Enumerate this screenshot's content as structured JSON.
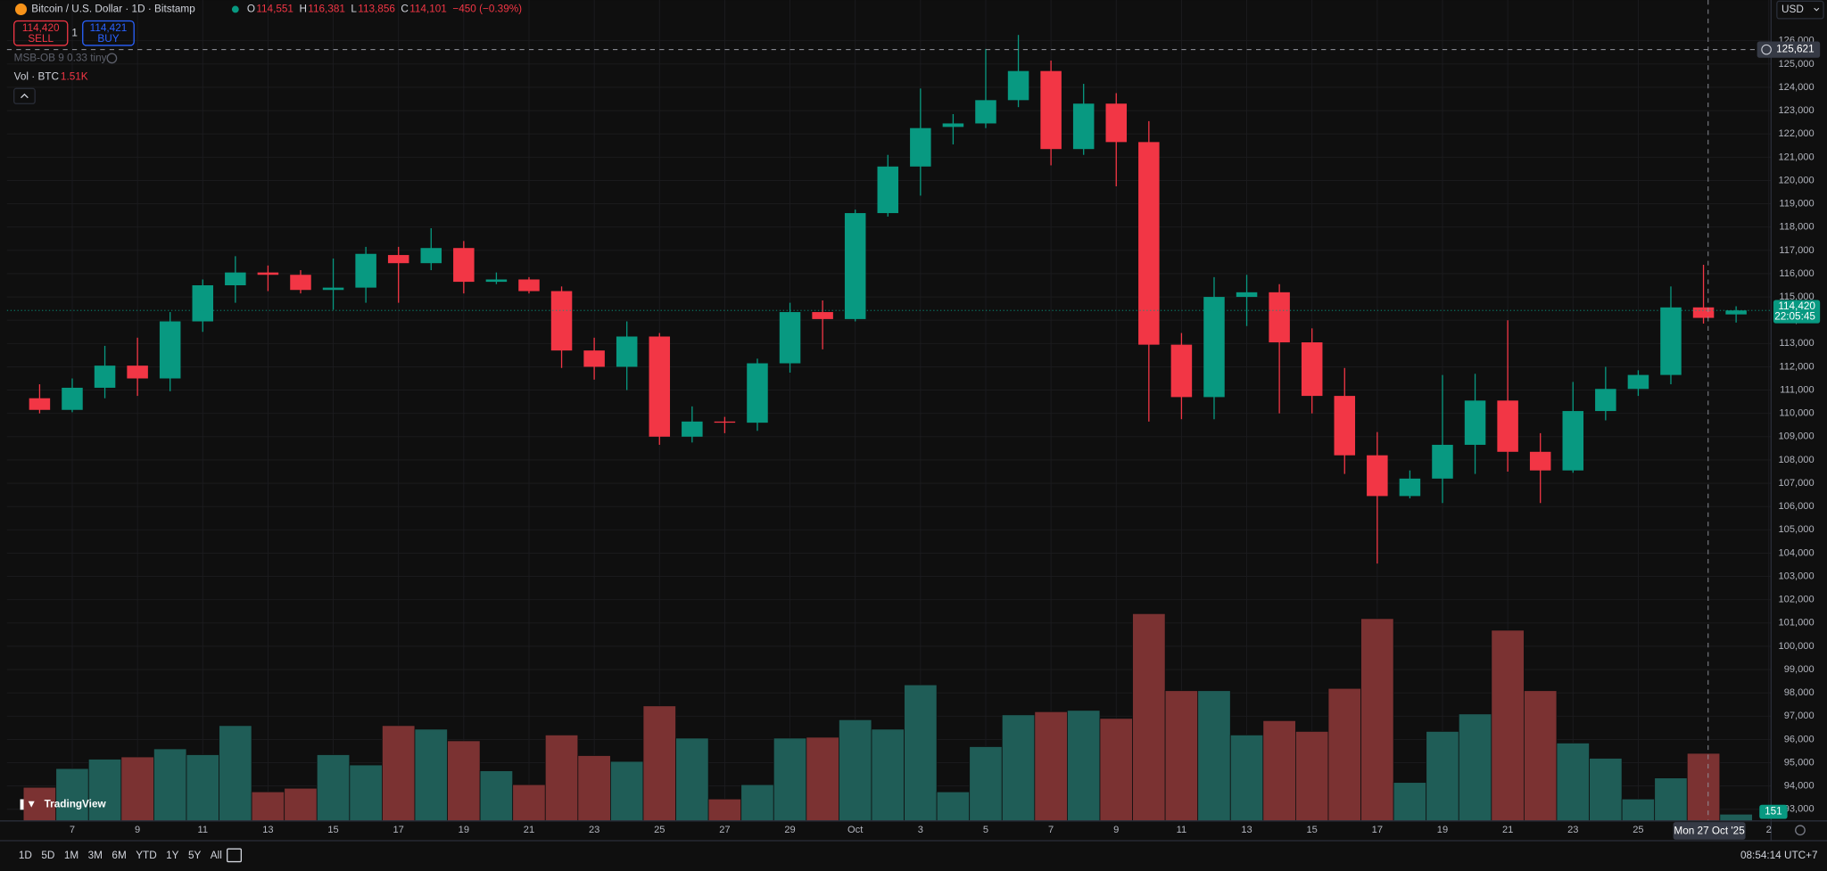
{
  "chart_data": {
    "type": "candlestick",
    "title": "Bitcoin / U.S. Dollar · 1D · Bitstamp",
    "categories": [
      null,
      "7",
      null,
      "9",
      null,
      "11",
      null,
      "13",
      null,
      "15",
      null,
      "17",
      null,
      "19",
      null,
      "21",
      null,
      "23",
      null,
      "25",
      null,
      "27",
      null,
      "29",
      null,
      "Oct",
      null,
      "3",
      null,
      "5",
      null,
      "7",
      null,
      "9",
      null,
      "11",
      null,
      "13",
      null,
      "15",
      null,
      "17",
      null,
      "19",
      null,
      "21",
      null,
      "23",
      null,
      "25",
      null,
      null,
      null,
      "2"
    ],
    "open": [
      110650,
      110150,
      111100,
      112050,
      111500,
      113950,
      115500,
      116050,
      115950,
      115300,
      115400,
      116800,
      116450,
      117100,
      115650,
      115750,
      115250,
      112700,
      112000,
      113300,
      109000,
      109650,
      109600,
      112150,
      114350,
      114050,
      118600,
      120600,
      122300,
      122450,
      123450,
      124700,
      121350,
      123300,
      121650,
      112950,
      110700,
      115000,
      115200,
      113050,
      110750,
      108200,
      106450,
      107200,
      108650,
      110550,
      108350,
      107550,
      110100,
      111050,
      111650,
      114551,
      114250,
      null
    ],
    "high": [
      111250,
      111500,
      112900,
      113250,
      114350,
      115750,
      116750,
      116350,
      116150,
      116650,
      117150,
      117150,
      117950,
      117400,
      116050,
      115850,
      115450,
      113250,
      113950,
      113450,
      110300,
      109850,
      112350,
      114750,
      114850,
      118750,
      121100,
      123950,
      122850,
      125650,
      126250,
      125150,
      124150,
      123750,
      122550,
      113450,
      115850,
      115950,
      115550,
      113650,
      111950,
      109200,
      107550,
      111650,
      111700,
      114000,
      109150,
      111350,
      112000,
      111850,
      115450,
      116381,
      114600,
      null
    ],
    "low": [
      110000,
      110050,
      110650,
      110750,
      110950,
      113500,
      114750,
      115250,
      115150,
      114450,
      114750,
      114750,
      116150,
      115150,
      115550,
      115150,
      111950,
      111450,
      111000,
      108650,
      108750,
      109150,
      109250,
      111750,
      112750,
      113950,
      118450,
      119350,
      121550,
      122250,
      123150,
      120650,
      121100,
      119750,
      109650,
      109750,
      109750,
      113750,
      110000,
      110000,
      107400,
      103550,
      106350,
      106150,
      107400,
      107500,
      106150,
      107450,
      109700,
      110750,
      111250,
      113856,
      113900,
      null
    ],
    "close": [
      110150,
      111100,
      112050,
      111500,
      113950,
      115500,
      116050,
      115950,
      115300,
      115400,
      116850,
      116450,
      117100,
      115650,
      115750,
      115250,
      112700,
      112000,
      113300,
      109000,
      109650,
      109600,
      112150,
      114350,
      114050,
      118600,
      120600,
      122250,
      122450,
      123450,
      124700,
      121350,
      123300,
      121650,
      112950,
      110700,
      115000,
      115200,
      113050,
      110750,
      108200,
      106450,
      107200,
      108650,
      110550,
      108350,
      107550,
      110100,
      111050,
      111650,
      114550,
      114101,
      114420,
      null
    ],
    "volume": [
      750,
      1170,
      1380,
      1430,
      1610,
      1480,
      2130,
      650,
      730,
      1480,
      1250,
      2130,
      2050,
      1790,
      1120,
      810,
      1920,
      1460,
      1330,
      2570,
      1850,
      490,
      810,
      1850,
      1870,
      2260,
      2050,
      3040,
      650,
      1660,
      2370,
      2440,
      2470,
      2290,
      4630,
      2910,
      2910,
      1920,
      2240,
      2000,
      2960,
      4520,
      860,
      2000,
      2390,
      4260,
      2910,
      1740,
      1400,
      490,
      960,
      1510,
      151,
      null
    ],
    "up_color": "#089981",
    "down_color": "#f23645",
    "volume_up_color": "#1f5d57",
    "volume_down_color": "#7b3232",
    "ylim": [
      92500,
      127750
    ],
    "yticks": [
      {
        "value": 93000,
        "label": "93,000"
      },
      {
        "value": 94000,
        "label": "94,000"
      },
      {
        "value": 95000,
        "label": "95,000"
      },
      {
        "value": 96000,
        "label": "96,000"
      },
      {
        "value": 97000,
        "label": "97,000"
      },
      {
        "value": 98000,
        "label": "98,000"
      },
      {
        "value": 99000,
        "label": "99,000"
      },
      {
        "value": 100000,
        "label": "100,000"
      },
      {
        "value": 101000,
        "label": "101,000"
      },
      {
        "value": 102000,
        "label": "102,000"
      },
      {
        "value": 103000,
        "label": "103,000"
      },
      {
        "value": 104000,
        "label": "104,000"
      },
      {
        "value": 105000,
        "label": "105,000"
      },
      {
        "value": 106000,
        "label": "106,000"
      },
      {
        "value": 107000,
        "label": "107,000"
      },
      {
        "value": 108000,
        "label": "108,000"
      },
      {
        "value": 109000,
        "label": "109,000"
      },
      {
        "value": 110000,
        "label": "110,000"
      },
      {
        "value": 111000,
        "label": "111,000"
      },
      {
        "value": 112000,
        "label": "112,000"
      },
      {
        "value": 113000,
        "label": "113,000"
      },
      {
        "value": 114000,
        "label": "114,000"
      },
      {
        "value": 115000,
        "label": "115,000"
      },
      {
        "value": 116000,
        "label": "116,000"
      },
      {
        "value": 117000,
        "label": "117,000"
      },
      {
        "value": 118000,
        "label": "118,000"
      },
      {
        "value": 119000,
        "label": "119,000"
      },
      {
        "value": 120000,
        "label": "120,000"
      },
      {
        "value": 121000,
        "label": "121,000"
      },
      {
        "value": 122000,
        "label": "122,000"
      },
      {
        "value": 123000,
        "label": "123,000"
      },
      {
        "value": 124000,
        "label": "124,000"
      },
      {
        "value": 125000,
        "label": "125,000"
      },
      {
        "value": 126000,
        "label": "126,000"
      }
    ],
    "grid": true,
    "crosshair": {
      "price": {
        "value": 125621,
        "label": "125,621"
      },
      "date": "Mon 27 Oct '25"
    }
  },
  "ui": {
    "ohlc": [
      [
        "O",
        "114,551"
      ],
      [
        "H",
        "116,381"
      ],
      [
        "L",
        "113,856"
      ],
      [
        "C",
        "114,101"
      ]
    ],
    "change": "−450 (−0.39%)",
    "sell_price": "114,420",
    "sell": "SELL",
    "spread": "1",
    "buy_price": "114,421",
    "buy": "BUY",
    "indicator": "MSB-OB 9 0.33 tiny",
    "vol_legend": "Vol · BTC",
    "vol_legend_value": "1.51K",
    "last_price": "114,420",
    "countdown": "22:05:45",
    "last_volume": "151",
    "currency": "USD",
    "logo": "TradingView",
    "ranges": [
      "1D",
      "5D",
      "1M",
      "3M",
      "6M",
      "YTD",
      "1Y",
      "5Y",
      "All"
    ],
    "clock": "08:54:14 UTC+7"
  }
}
